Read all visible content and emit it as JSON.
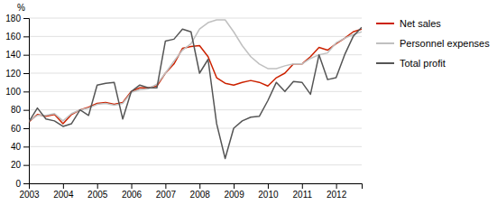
{
  "chart_data": {
    "type": "line",
    "ylabel": "%",
    "categories": [
      "2003",
      null,
      null,
      null,
      "2004",
      null,
      null,
      null,
      "2005",
      null,
      null,
      null,
      "2006",
      null,
      null,
      null,
      "2007",
      null,
      null,
      null,
      "2008",
      null,
      null,
      null,
      "2009",
      null,
      null,
      null,
      "2010",
      null,
      null,
      null,
      "2011",
      null,
      null,
      null,
      "2012",
      null,
      null,
      null
    ],
    "series": [
      {
        "name": "Net sales",
        "color": "#cc2200",
        "values": [
          67,
          75,
          73,
          75,
          65,
          75,
          80,
          83,
          87,
          88,
          86,
          88,
          100,
          104,
          104,
          106,
          120,
          130,
          147,
          149,
          150,
          138,
          115,
          109,
          107,
          110,
          112,
          110,
          106,
          115,
          120,
          130,
          130,
          138,
          148,
          145,
          152,
          158,
          165,
          168
        ]
      },
      {
        "name": "Personnel expenses",
        "color": "#c0c0c0",
        "values": [
          68,
          74,
          74,
          76,
          68,
          76,
          80,
          82,
          86,
          87,
          85,
          87,
          99,
          102,
          103,
          108,
          120,
          133,
          145,
          152,
          168,
          175,
          178,
          178,
          165,
          150,
          138,
          130,
          125,
          125,
          128,
          130,
          130,
          136,
          140,
          142,
          153,
          158,
          162,
          165
        ]
      },
      {
        "name": "Total profit",
        "color": "#555555",
        "values": [
          67,
          82,
          70,
          68,
          62,
          65,
          80,
          74,
          107,
          109,
          110,
          70,
          100,
          107,
          104,
          104,
          155,
          157,
          168,
          165,
          120,
          135,
          65,
          27,
          60,
          68,
          72,
          73,
          90,
          110,
          100,
          111,
          110,
          97,
          140,
          113,
          115,
          140,
          160,
          170
        ]
      }
    ],
    "ylim": [
      0,
      180
    ],
    "yticks": [
      0,
      20,
      40,
      60,
      80,
      100,
      120,
      140,
      160,
      180
    ],
    "grid": true,
    "legend": "right"
  }
}
